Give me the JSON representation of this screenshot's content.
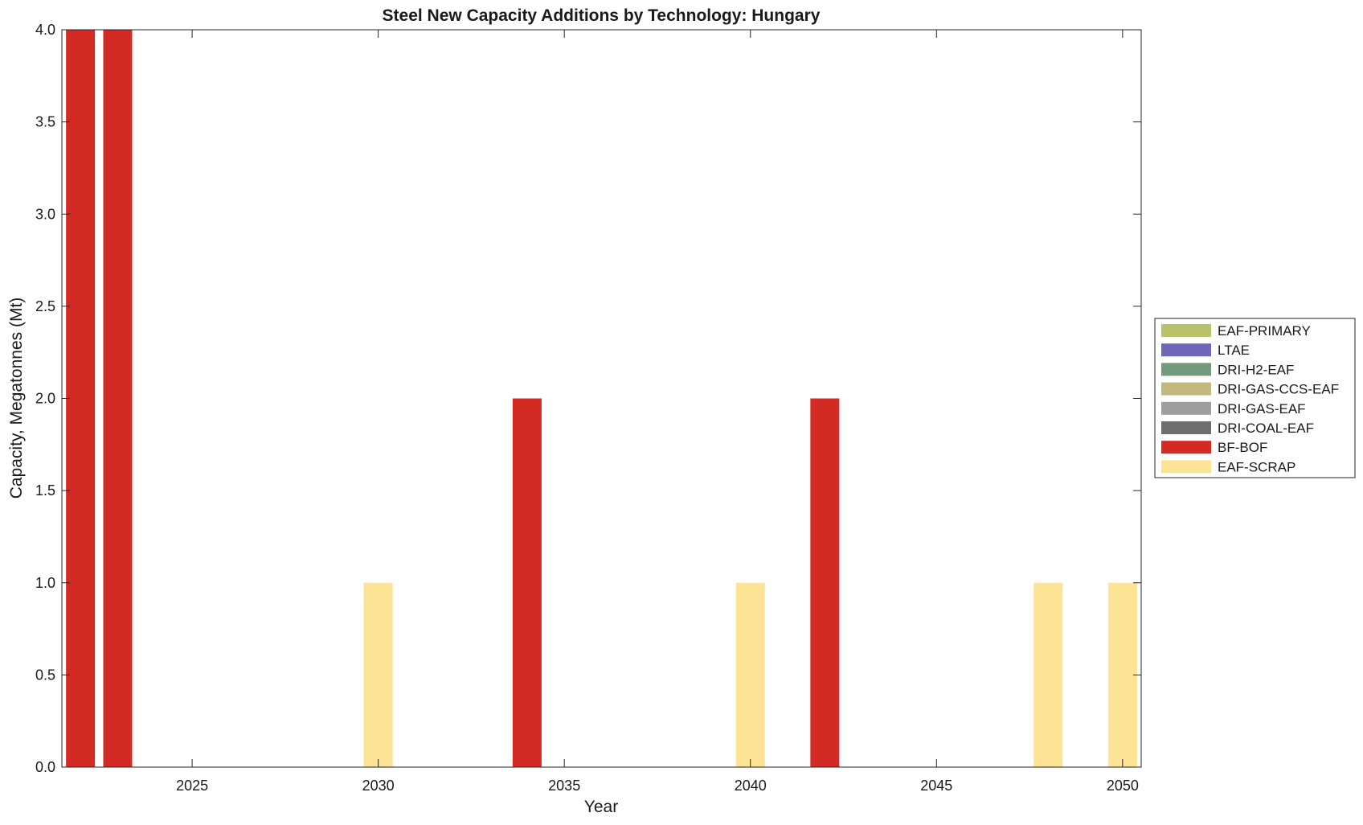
{
  "chart_data": {
    "type": "bar",
    "stacked": true,
    "title": "Steel New Capacity Additions by Technology: Hungary",
    "xlabel": "Year",
    "ylabel": "Capacity, Megatonnes (Mt)",
    "xlim": [
      2021.5,
      2050.5
    ],
    "ylim": [
      0,
      4.0
    ],
    "grid": false,
    "legend_position": "right",
    "x_ticks": [
      2025,
      2030,
      2035,
      2040,
      2045,
      2050
    ],
    "x_tick_labels": [
      "2025",
      "2030",
      "2035",
      "2040",
      "2045",
      "2050"
    ],
    "y_ticks": [
      0,
      0.5,
      1.0,
      1.5,
      2.0,
      2.5,
      3.0,
      3.5,
      4.0
    ],
    "y_tick_labels": [
      "0.0",
      "0.5",
      "1.0",
      "1.5",
      "2.0",
      "2.5",
      "3.0",
      "3.5",
      "4.0"
    ],
    "x": [
      2022,
      2023,
      2030,
      2034,
      2040,
      2042,
      2048,
      2050
    ],
    "series": [
      {
        "name": "EAF-PRIMARY",
        "color": "#b9c16a",
        "values": [
          0,
          0,
          0,
          0,
          0,
          0,
          0,
          0
        ]
      },
      {
        "name": "LTAE",
        "color": "#7066b8",
        "values": [
          0,
          0,
          0,
          0,
          0,
          0,
          0,
          0
        ]
      },
      {
        "name": "DRI-H2-EAF",
        "color": "#739a7c",
        "values": [
          0,
          0,
          0,
          0,
          0,
          0,
          0,
          0
        ]
      },
      {
        "name": "DRI-GAS-CCS-EAF",
        "color": "#c2b97c",
        "values": [
          0,
          0,
          0,
          0,
          0,
          0,
          0,
          0
        ]
      },
      {
        "name": "DRI-GAS-EAF",
        "color": "#9e9e9e",
        "values": [
          0,
          0,
          0,
          0,
          0,
          0,
          0,
          0
        ]
      },
      {
        "name": "DRI-COAL-EAF",
        "color": "#6e6e6e",
        "values": [
          0,
          0,
          0,
          0,
          0,
          0,
          0,
          0
        ]
      },
      {
        "name": "BF-BOF",
        "color": "#d32a24",
        "values": [
          4.0,
          4.0,
          0,
          2.0,
          0,
          2.0,
          0,
          0
        ]
      },
      {
        "name": "EAF-SCRAP",
        "color": "#fde394",
        "values": [
          0,
          0,
          1.0,
          0,
          1.0,
          0,
          1.0,
          1.0
        ]
      }
    ]
  }
}
